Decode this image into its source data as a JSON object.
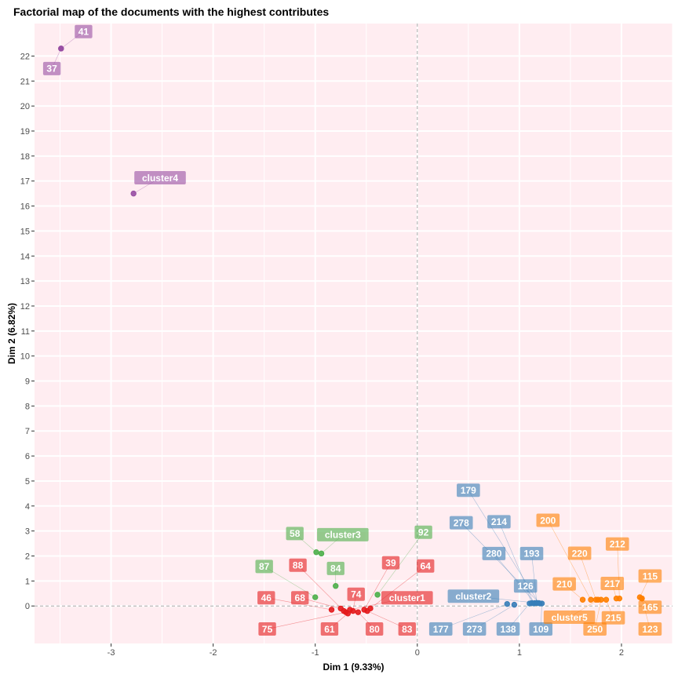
{
  "chart_data": {
    "type": "scatter",
    "title": "Factorial map of the documents with the highest contributes",
    "xlabel": "Dim 1 (9.33%)",
    "ylabel": "Dim 2 (6.82%)",
    "xlim": [
      -3.75,
      2.5
    ],
    "ylim": [
      -1.5,
      23.3
    ],
    "xticks": [
      -3,
      -2,
      -1,
      0,
      1,
      2
    ],
    "yticks": [
      0,
      1,
      2,
      3,
      4,
      5,
      6,
      7,
      8,
      9,
      10,
      11,
      12,
      13,
      14,
      15,
      16,
      17,
      18,
      19,
      20,
      21,
      22
    ],
    "grid": true,
    "reference_lines": {
      "x": 0,
      "y": 0
    },
    "colors": {
      "cluster1": "#e41a1c",
      "cluster2": "#377eb8",
      "cluster3": "#4daf4a",
      "cluster4": "#984ea3",
      "cluster5": "#ff7f00",
      "panel_bg": "#ffedf1"
    },
    "series": [
      {
        "name": "cluster1",
        "points": [
          {
            "label": "46",
            "x": -0.84,
            "y": -0.15,
            "lx": -1.48,
            "ly": 0.33
          },
          {
            "label": "68",
            "x": -0.75,
            "y": -0.1,
            "lx": -1.15,
            "ly": 0.33
          },
          {
            "label": "88",
            "x": -0.72,
            "y": -0.2,
            "lx": -1.17,
            "ly": 1.63
          },
          {
            "label": "75",
            "x": -0.7,
            "y": -0.25,
            "lx": -1.47,
            "ly": -0.92
          },
          {
            "label": "61",
            "x": -0.68,
            "y": -0.3,
            "lx": -0.86,
            "ly": -0.92
          },
          {
            "label": "74",
            "x": -0.63,
            "y": -0.2,
            "lx": -0.6,
            "ly": 0.47
          },
          {
            "label": "80",
            "x": -0.58,
            "y": -0.25,
            "lx": -0.42,
            "ly": -0.92
          },
          {
            "label": "39",
            "x": -0.52,
            "y": -0.15,
            "lx": -0.26,
            "ly": 1.73
          },
          {
            "label": "83",
            "x": -0.49,
            "y": -0.2,
            "lx": -0.1,
            "ly": -0.92
          },
          {
            "label": "64",
            "x": -0.46,
            "y": -0.1,
            "lx": 0.08,
            "ly": 1.6
          },
          {
            "label": "cluster1",
            "x": -0.66,
            "y": -0.15,
            "lx": -0.1,
            "ly": 0.33
          }
        ]
      },
      {
        "name": "cluster2",
        "points": [
          {
            "label": "177",
            "x": 0.88,
            "y": 0.08,
            "lx": 0.23,
            "ly": -0.92
          },
          {
            "label": "273",
            "x": 0.95,
            "y": 0.05,
            "lx": 0.56,
            "ly": -0.92
          },
          {
            "label": "138",
            "x": 1.1,
            "y": 0.1,
            "lx": 0.89,
            "ly": -0.92
          },
          {
            "label": "109",
            "x": 1.22,
            "y": 0.1,
            "lx": 1.21,
            "ly": -0.92
          },
          {
            "label": "126",
            "x": 1.12,
            "y": 0.12,
            "lx": 1.06,
            "ly": 0.8
          },
          {
            "label": "193",
            "x": 1.17,
            "y": 0.12,
            "lx": 1.12,
            "ly": 2.1
          },
          {
            "label": "280",
            "x": 1.15,
            "y": 0.12,
            "lx": 0.75,
            "ly": 2.1
          },
          {
            "label": "214",
            "x": 1.14,
            "y": 0.1,
            "lx": 0.8,
            "ly": 3.37
          },
          {
            "label": "278",
            "x": 1.2,
            "y": 0.1,
            "lx": 0.43,
            "ly": 3.33
          },
          {
            "label": "179",
            "x": 1.19,
            "y": 0.12,
            "lx": 0.5,
            "ly": 4.63
          },
          {
            "label": "cluster2",
            "x": 1.17,
            "y": 0.12,
            "lx": 0.55,
            "ly": 0.39
          }
        ]
      },
      {
        "name": "cluster3",
        "points": [
          {
            "label": "87",
            "x": -1.0,
            "y": 0.35,
            "lx": -1.5,
            "ly": 1.58
          },
          {
            "label": "58",
            "x": -0.99,
            "y": 2.15,
            "lx": -1.2,
            "ly": 2.9
          },
          {
            "label": "84",
            "x": -0.8,
            "y": 0.8,
            "lx": -0.8,
            "ly": 1.5
          },
          {
            "label": "92",
            "x": -0.39,
            "y": 0.45,
            "lx": 0.06,
            "ly": 2.95
          },
          {
            "label": "cluster3",
            "x": -0.94,
            "y": 2.1,
            "lx": -0.73,
            "ly": 2.85
          }
        ]
      },
      {
        "name": "cluster4",
        "points": [
          {
            "label": "41",
            "x": -3.49,
            "y": 22.3,
            "lx": -3.27,
            "ly": 22.98
          },
          {
            "label": "37",
            "x": -3.49,
            "y": 22.3,
            "lx": -3.58,
            "ly": 21.5
          },
          {
            "label": "cluster4",
            "x": -2.78,
            "y": 16.5,
            "lx": -2.52,
            "ly": 17.13
          }
        ]
      },
      {
        "name": "cluster5",
        "points": [
          {
            "label": "115",
            "x": 2.18,
            "y": 0.35,
            "lx": 2.28,
            "ly": 1.2
          },
          {
            "label": "165",
            "x": 2.2,
            "y": 0.3,
            "lx": 2.28,
            "ly": -0.05
          },
          {
            "label": "123",
            "x": 2.2,
            "y": 0.3,
            "lx": 2.28,
            "ly": -0.92
          },
          {
            "label": "212",
            "x": 1.98,
            "y": 0.3,
            "lx": 1.96,
            "ly": 2.48
          },
          {
            "label": "217",
            "x": 1.95,
            "y": 0.3,
            "lx": 1.91,
            "ly": 0.9
          },
          {
            "label": "215",
            "x": 1.85,
            "y": 0.25,
            "lx": 1.92,
            "ly": -0.47
          },
          {
            "label": "250",
            "x": 1.8,
            "y": 0.25,
            "lx": 1.74,
            "ly": -0.92
          },
          {
            "label": "220",
            "x": 1.75,
            "y": 0.25,
            "lx": 1.59,
            "ly": 2.11
          },
          {
            "label": "210",
            "x": 1.62,
            "y": 0.25,
            "lx": 1.44,
            "ly": 0.88
          },
          {
            "label": "200",
            "x": 1.7,
            "y": 0.25,
            "lx": 1.28,
            "ly": 3.43
          },
          {
            "label": "cluster5",
            "x": 1.77,
            "y": 0.25,
            "lx": 1.49,
            "ly": -0.45
          }
        ]
      }
    ]
  }
}
